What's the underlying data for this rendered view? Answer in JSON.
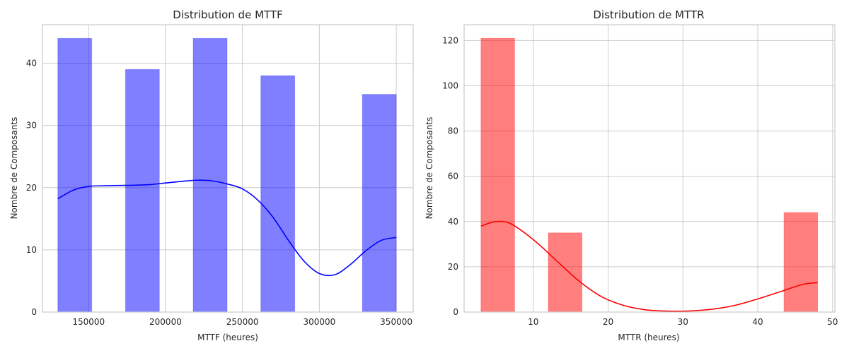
{
  "chart_data": [
    {
      "type": "bar",
      "title": "Distribution de MTTF",
      "xlabel": "MTTF (heures)",
      "ylabel": "Nombre de Composants",
      "xlim": [
        120000,
        361000
      ],
      "ylim": [
        0,
        46.2
      ],
      "xticks": [
        150000,
        200000,
        250000,
        300000,
        350000
      ],
      "yticks": [
        0,
        10,
        20,
        30,
        40
      ],
      "bar_color": "#0000ff",
      "bars": [
        {
          "x0": 130000,
          "x1": 152000,
          "value": 44
        },
        {
          "x0": 174000,
          "x1": 196000,
          "value": 39
        },
        {
          "x0": 218000,
          "x1": 240000,
          "value": 44
        },
        {
          "x0": 262000,
          "x1": 284000,
          "value": 38
        },
        {
          "x0": 328000,
          "x1": 350000,
          "value": 35
        }
      ],
      "kde": {
        "color": "#0000ff",
        "x": [
          130000,
          140000,
          150000,
          160000,
          170000,
          180000,
          190000,
          200000,
          210000,
          220000,
          230000,
          240000,
          250000,
          260000,
          270000,
          280000,
          290000,
          300000,
          310000,
          320000,
          330000,
          340000,
          350000
        ],
        "y": [
          18.2,
          19.6,
          20.2,
          20.3,
          20.35,
          20.4,
          20.5,
          20.75,
          21.0,
          21.2,
          21.1,
          20.6,
          19.8,
          18.0,
          15.2,
          11.5,
          8.2,
          6.2,
          6.0,
          7.6,
          9.8,
          11.5,
          12.0
        ]
      },
      "grid": true
    },
    {
      "type": "bar",
      "title": "Distribution de MTTR",
      "xlabel": "MTTR (heures)",
      "ylabel": "Nombre de Composants",
      "xlim": [
        0.75,
        50.3
      ],
      "ylim": [
        0,
        127
      ],
      "xticks": [
        10,
        20,
        30,
        40,
        50
      ],
      "yticks": [
        0,
        20,
        40,
        60,
        80,
        100,
        120
      ],
      "bar_color": "#ff0000",
      "bars": [
        {
          "x0": 3.0,
          "x1": 7.5,
          "value": 121
        },
        {
          "x0": 12.0,
          "x1": 16.5,
          "value": 35
        },
        {
          "x0": 43.5,
          "x1": 48.0,
          "value": 44
        }
      ],
      "kde": {
        "color": "#ff0000",
        "x": [
          3,
          5,
          7,
          10,
          13,
          16,
          19,
          22,
          25,
          28,
          31,
          34,
          37,
          40,
          43,
          46,
          48
        ],
        "y": [
          38,
          40,
          39,
          32,
          23,
          14,
          7,
          3,
          1,
          0.4,
          0.5,
          1.3,
          3,
          5.8,
          9,
          12.2,
          13
        ]
      },
      "grid": true
    }
  ]
}
